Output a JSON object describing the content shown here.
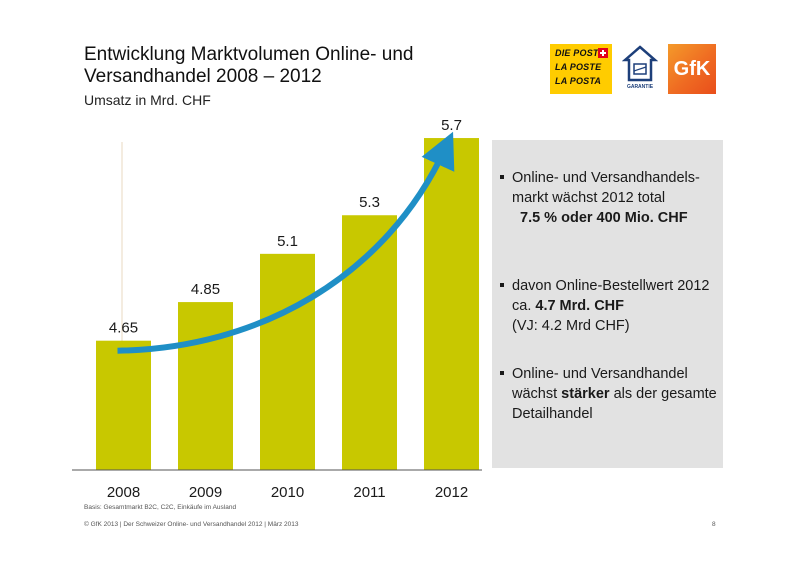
{
  "header": {
    "title_line1": "Entwicklung Marktvolumen Online- und",
    "title_line2": "Versandhandel 2008 – 2012",
    "subtitle": "Umsatz in Mrd. CHF"
  },
  "logos": {
    "post_lines": [
      "DIE POST",
      "LA POSTE",
      "LA POSTA"
    ],
    "garantie": "GARANTIE",
    "gfk": "GfK"
  },
  "chart_data": {
    "type": "bar",
    "categories": [
      "2008",
      "2009",
      "2010",
      "2011",
      "2012"
    ],
    "values": [
      4.65,
      4.85,
      5.1,
      5.3,
      5.7
    ],
    "value_labels": [
      "4.65",
      "4.85",
      "5.1",
      "5.3",
      "5.7"
    ],
    "bar_color": "#c8c800",
    "trend_arrow_color": "#1f8fc6",
    "grid": false
  },
  "bullets": [
    {
      "normal": "Online- und Versandhandels-markt wächst 2012 total",
      "bold": "7.5 % oder 400 Mio. CHF"
    },
    {
      "normal": "davon Online-Bestellwert 2012 ca.",
      "bold": "4.7 Mrd. CHF",
      "after": "(VJ: 4.2 Mrd CHF)"
    },
    {
      "normal": "Online- und Versandhandel wächst",
      "bold": "stärker",
      "after": "als der gesamte Detailhandel"
    }
  ],
  "footer": {
    "basis": "Basis: Gesamtmarkt B2C, C2C, Einkäufe im Ausland",
    "copyright": "© GfK 2013 | Der Schweizer Online- und Versandhandel 2012 | März 2013",
    "page": "8"
  }
}
